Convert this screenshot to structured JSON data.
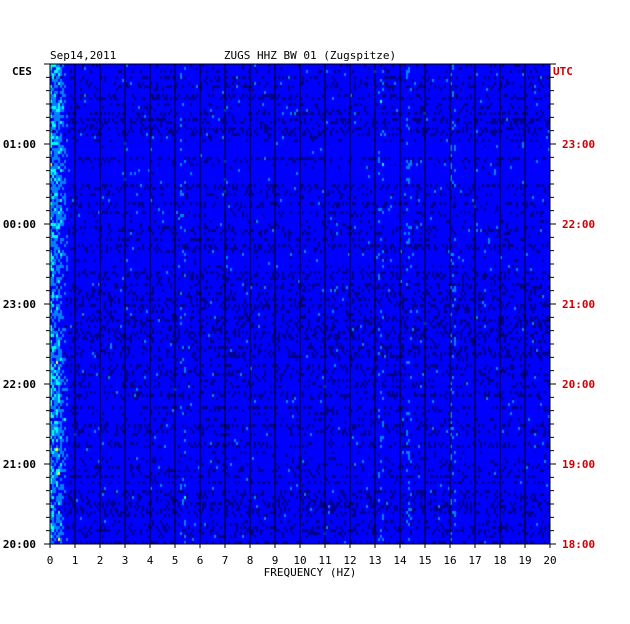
{
  "chart_data": {
    "type": "heatmap",
    "title": "ZUGS HHZ BW 01 (Zugspitze)",
    "date": "Sep14,2011",
    "xlabel": "FREQUENCY (HZ)",
    "xlim": [
      0,
      20
    ],
    "x_ticks": [
      "0",
      "1",
      "2",
      "3",
      "4",
      "5",
      "6",
      "7",
      "8",
      "9",
      "10",
      "11",
      "12",
      "13",
      "14",
      "15",
      "16",
      "17",
      "18",
      "19",
      "20"
    ],
    "left_axis_label": "CES",
    "right_axis_label": "UTC",
    "left_time_ticks": [
      "01:00",
      "00:00",
      "23:00",
      "22:00",
      "21:00",
      "20:00"
    ],
    "right_time_ticks": [
      "23:00",
      "22:00",
      "21:00",
      "20:00",
      "19:00",
      "18:00"
    ],
    "time_range_utc": [
      "18:00",
      "24:00"
    ],
    "colormap": [
      "#00008b",
      "#0000ff",
      "#0080ff",
      "#00ffff",
      "#ffff00",
      "#ff0000"
    ],
    "notable_features": [
      {
        "frequency_hz": 0.3,
        "description": "strong low-frequency energy"
      },
      {
        "frequency_hz": 13.2,
        "description": "spectral line"
      },
      {
        "frequency_hz": 14.3,
        "description": "spectral line"
      },
      {
        "frequency_hz": 16.1,
        "description": "weak spectral line"
      },
      {
        "frequency_hz": 5.3,
        "description": "short feature near 18:30 UTC"
      }
    ]
  }
}
